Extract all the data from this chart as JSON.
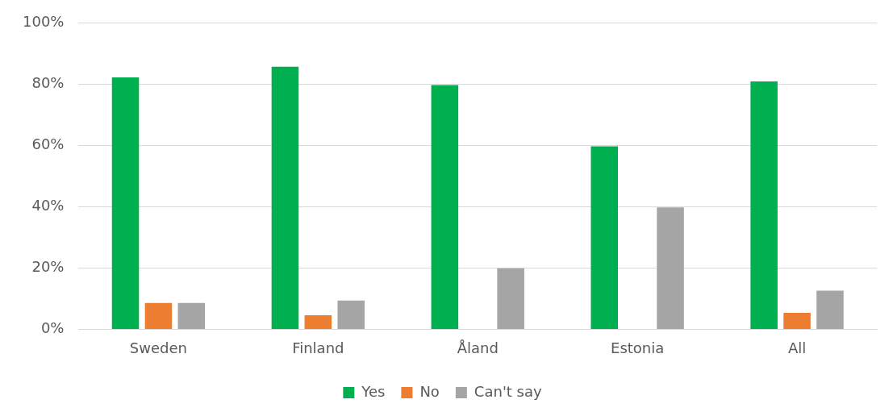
{
  "chart_data": {
    "type": "bar",
    "categories": [
      "Sweden",
      "Finland",
      "Åland",
      "Estonia",
      "All"
    ],
    "series": [
      {
        "name": "Yes",
        "color": "#00b050",
        "values": [
          82.3,
          85.8,
          79.8,
          59.8,
          81
        ]
      },
      {
        "name": "No",
        "color": "#ed7d31",
        "values": [
          8.6,
          4.6,
          0,
          0,
          5.4
        ]
      },
      {
        "name": "Can't say",
        "color": "#a5a5a5",
        "values": [
          8.6,
          9.4,
          19.9,
          39.8,
          12.6
        ]
      }
    ],
    "ylim": [
      0,
      100
    ],
    "yticks": [
      {
        "value": 0,
        "label": "0%"
      },
      {
        "value": 20,
        "label": "20%"
      },
      {
        "value": 40,
        "label": "40%"
      },
      {
        "value": 60,
        "label": "60%"
      },
      {
        "value": 80,
        "label": "80%"
      },
      {
        "value": 100,
        "label": "100%"
      }
    ],
    "grid": "y",
    "legend": "bottom"
  }
}
